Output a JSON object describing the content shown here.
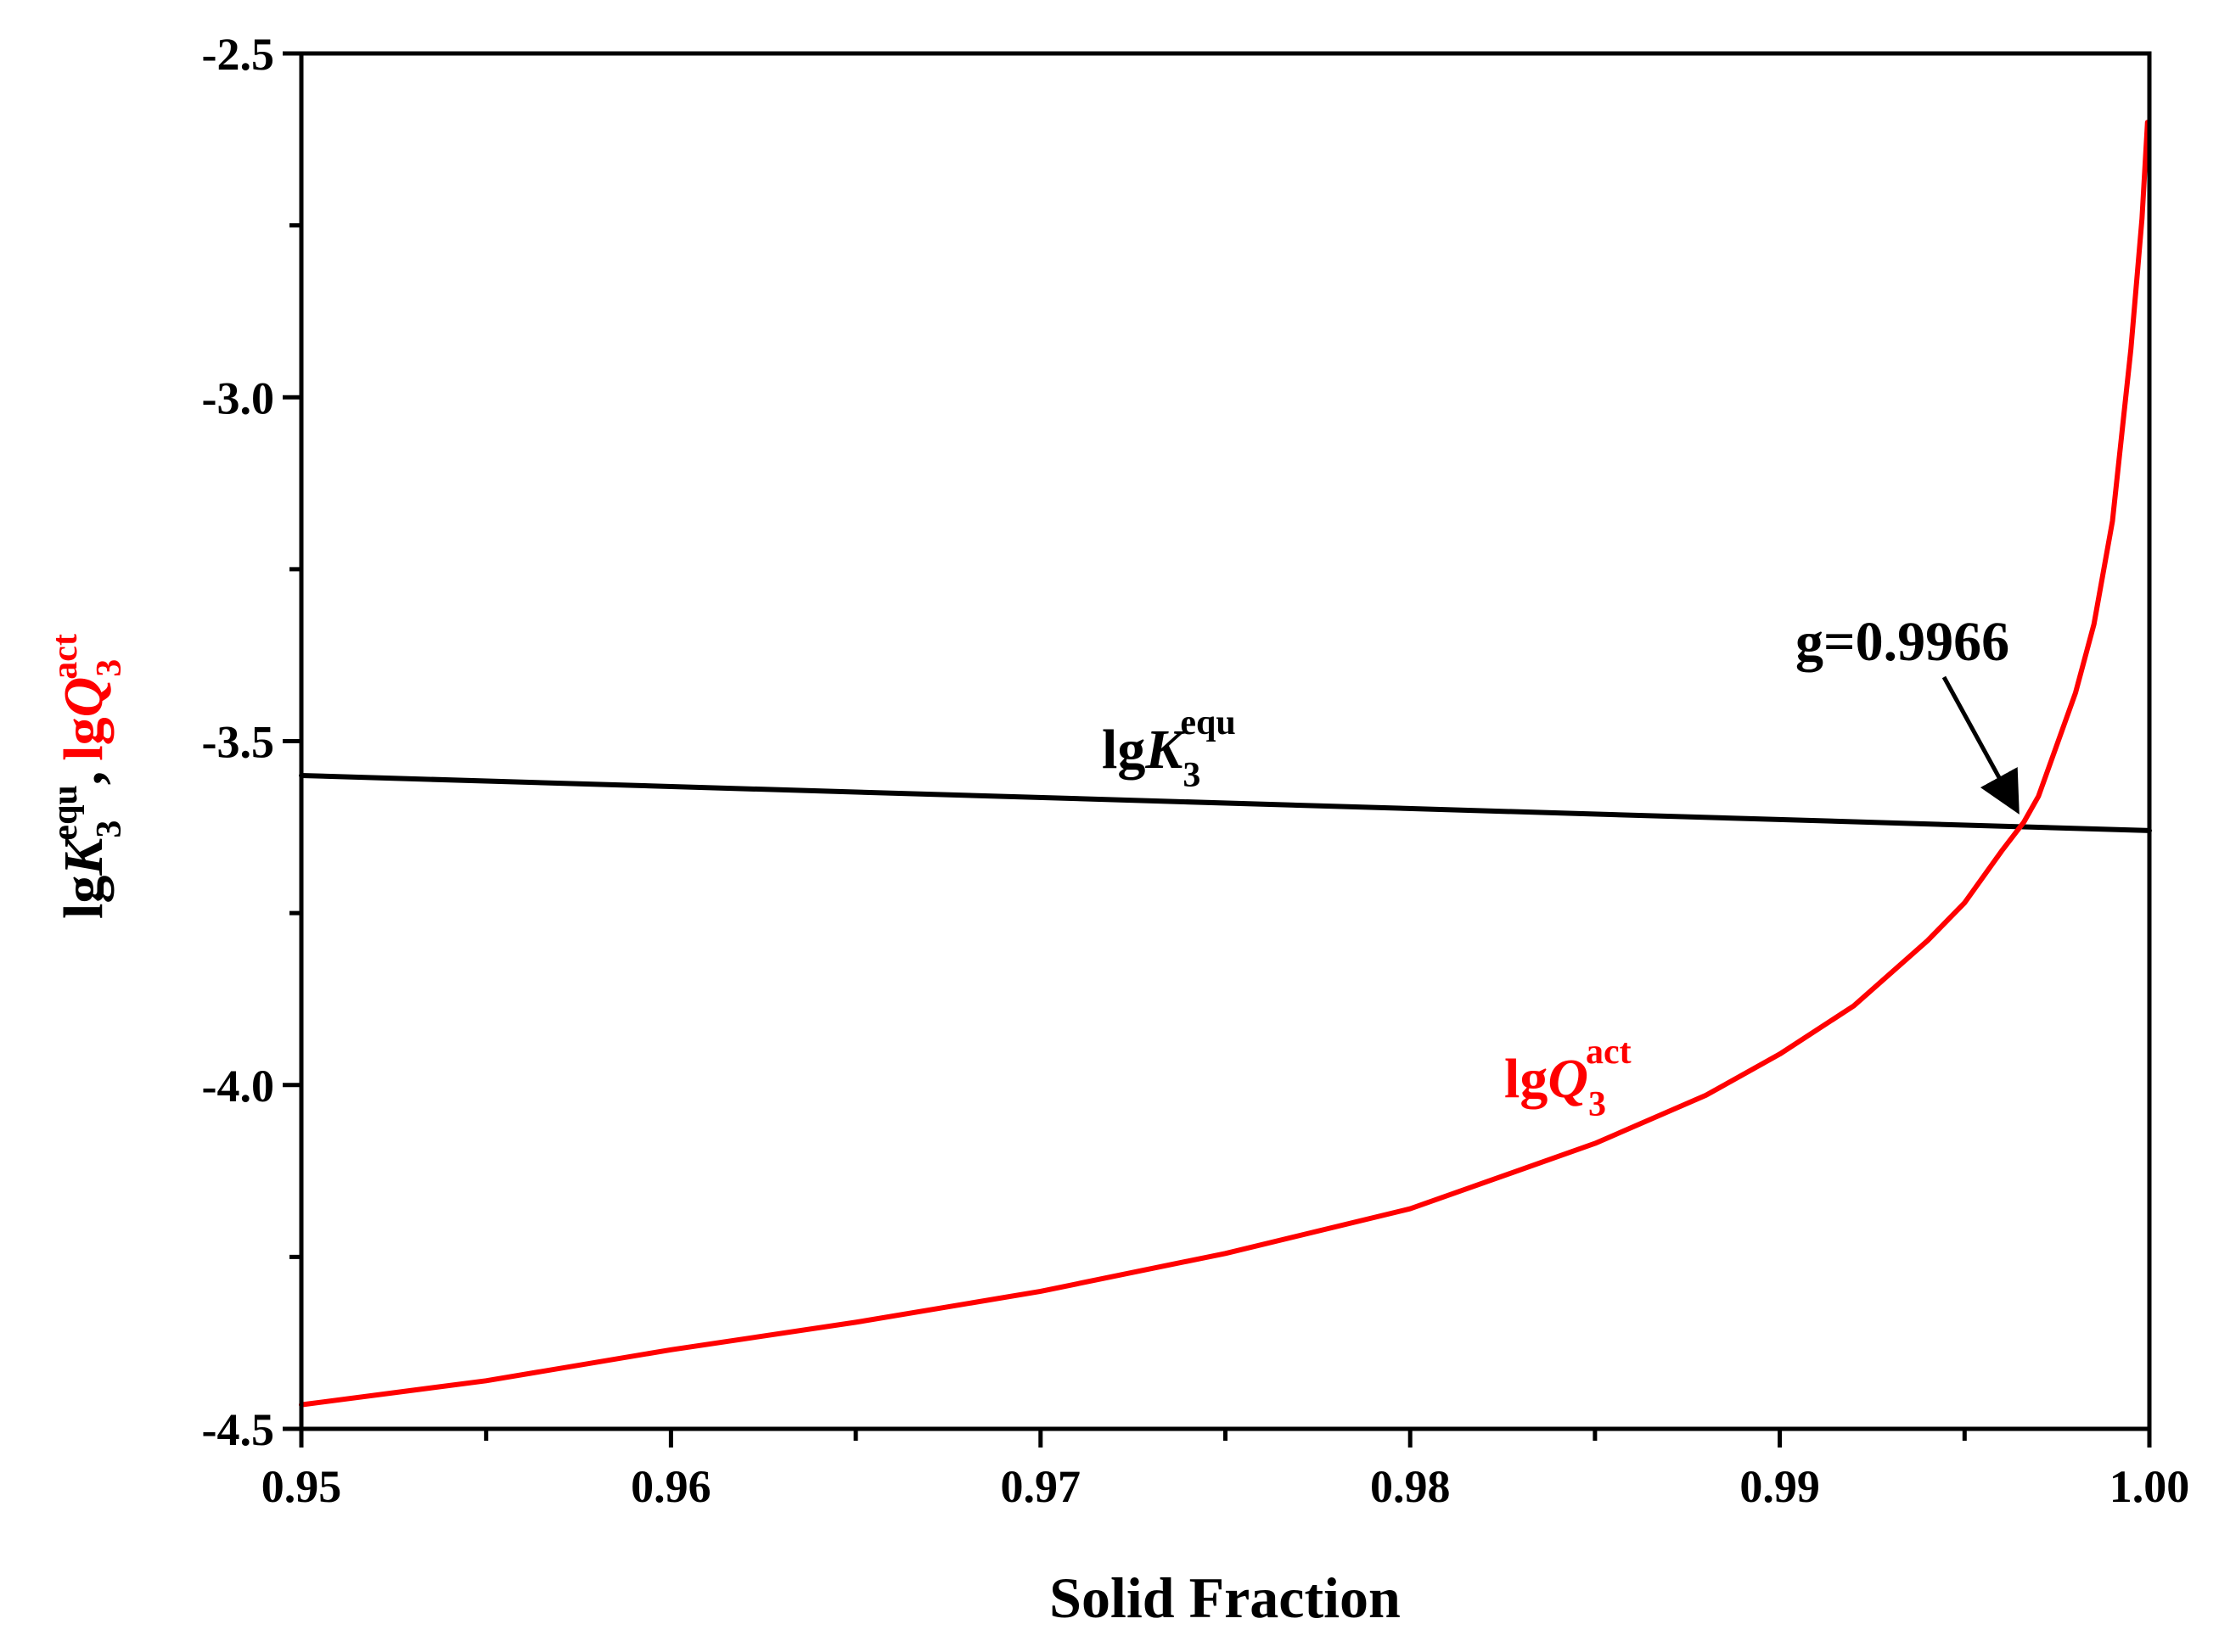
{
  "chart_data": {
    "type": "line",
    "title": "",
    "xlabel": "Solid Fraction",
    "ylabel": {
      "k_prefix": "lg",
      "k_var": "K",
      "k_sub": "3",
      "k_sup": "equ",
      "separator": ",",
      "q_prefix": "lg",
      "q_var": "Q",
      "q_sub": "3",
      "q_sup": "act"
    },
    "xlim": [
      0.95,
      1.0
    ],
    "ylim": [
      -4.5,
      -2.5
    ],
    "x_ticks": [
      0.95,
      0.96,
      0.97,
      0.98,
      0.99,
      1.0
    ],
    "x_tick_labels": [
      "0.95",
      "0.96",
      "0.97",
      "0.98",
      "0.99",
      "1.00"
    ],
    "x_minor_ticks": [
      0.955,
      0.965,
      0.975,
      0.985,
      0.995
    ],
    "y_ticks": [
      -4.5,
      -4.0,
      -3.5,
      -3.0,
      -2.5
    ],
    "y_tick_labels": [
      "-4.5",
      "-4.0",
      "-3.5",
      "-3.0",
      "-2.5"
    ],
    "y_minor_ticks": [
      -4.25,
      -3.75,
      -3.25,
      -2.75
    ],
    "grid": false,
    "series": [
      {
        "name": "lgK3equ",
        "color": "#000000",
        "x": [
          0.95,
          1.0
        ],
        "y": [
          -3.55,
          -3.63
        ]
      },
      {
        "name": "lgQ3act",
        "color": "#ff0000",
        "x": [
          0.95,
          0.955,
          0.96,
          0.965,
          0.97,
          0.975,
          0.98,
          0.985,
          0.988,
          0.99,
          0.992,
          0.994,
          0.995,
          0.996,
          0.9966,
          0.997,
          0.998,
          0.9985,
          0.999,
          0.9995,
          0.9998,
          0.99995
        ],
        "y": [
          -4.465,
          -4.43,
          -4.385,
          -4.345,
          -4.3,
          -4.245,
          -4.18,
          -4.085,
          -4.015,
          -3.955,
          -3.885,
          -3.79,
          -3.735,
          -3.66,
          -3.618,
          -3.58,
          -3.43,
          -3.33,
          -3.18,
          -2.93,
          -2.74,
          -2.6
        ]
      }
    ],
    "annotations": {
      "k_label": {
        "prefix": "lg",
        "var": "K",
        "sub": "3",
        "sup": "equ"
      },
      "q_label": {
        "prefix": "lg",
        "var": "Q",
        "sub": "3",
        "sup": "act"
      },
      "intersection": {
        "text": "g=0.9966",
        "x": 0.9966,
        "y": -3.618
      }
    }
  }
}
